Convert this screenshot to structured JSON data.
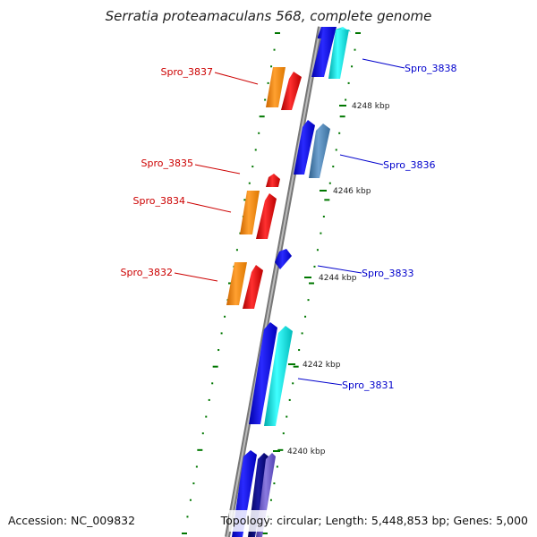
{
  "title": "Serratia proteamaculans 568, complete genome",
  "accession": "Accession: NC_009832",
  "topology": "Topology: circular; Length: 5,448,853 bp; Genes: 5,000",
  "kbp_labels": [
    "4248 kbp",
    "4246 kbp",
    "4244 kbp",
    "4242 kbp",
    "4240 kbp"
  ],
  "reverse_genes": [
    "Spro_3837",
    "Spro_3835",
    "Spro_3834",
    "Spro_3832"
  ],
  "forward_genes": [
    "Spro_3838",
    "Spro_3836",
    "Spro_3833",
    "Spro_3831"
  ],
  "colors": {
    "reverse_label": "#cc0000",
    "forward_label": "#0000cc",
    "red": "#ee0000",
    "orange": "#ff8800",
    "blue": "#0000ee",
    "cyan": "#00dddd",
    "steelblue": "#4682b4",
    "navy": "#000080",
    "slateblue": "#6a5acd",
    "backbone": "#888888",
    "ticks": "#007700"
  }
}
